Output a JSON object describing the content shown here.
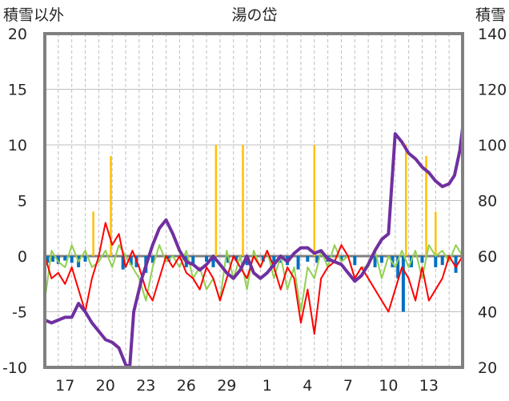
{
  "chart_data": {
    "type": "line",
    "title": "湯の岱",
    "y_left_label": "積雪以外",
    "y_right_label": "積雪",
    "y_left_range": [
      -10,
      20
    ],
    "y_right_range": [
      20,
      140
    ],
    "y_left_ticks": [
      "20",
      "15",
      "10",
      "5",
      "0",
      "-5",
      "-10"
    ],
    "y_right_ticks": [
      "140",
      "120",
      "100",
      "80",
      "60",
      "40",
      "20"
    ],
    "x_range_days": [
      0,
      31
    ],
    "x_ticks": [
      {
        "day": 1.5,
        "label": "17"
      },
      {
        "day": 4.5,
        "label": "20"
      },
      {
        "day": 7.5,
        "label": "23"
      },
      {
        "day": 10.5,
        "label": "26"
      },
      {
        "day": 13.5,
        "label": "29"
      },
      {
        "day": 16.5,
        "label": "1"
      },
      {
        "day": 19.5,
        "label": "4"
      },
      {
        "day": 22.5,
        "label": "7"
      },
      {
        "day": 25.5,
        "label": "10"
      },
      {
        "day": 28.5,
        "label": "13"
      }
    ],
    "grid": "horizontal solid at each left tick, vertical dashed at each day",
    "colors": {
      "snow_depth": "#7030a0",
      "temp_max": "#ff0000",
      "temp_min": "#92d050",
      "precip": "#ffc000",
      "negative_bars": "#0070c0",
      "frame": "#808080",
      "grid": "#bfbfbf",
      "zero_line": "#808080"
    },
    "series": [
      {
        "key": "snow_depth",
        "axis": "right",
        "points": [
          [
            0,
            37
          ],
          [
            0.5,
            36
          ],
          [
            1,
            37
          ],
          [
            1.5,
            38
          ],
          [
            2,
            38
          ],
          [
            2.5,
            43
          ],
          [
            3,
            40
          ],
          [
            3.5,
            36
          ],
          [
            4,
            33
          ],
          [
            4.5,
            30
          ],
          [
            5,
            29
          ],
          [
            5.5,
            27
          ],
          [
            6,
            21
          ],
          [
            6.3,
            20
          ],
          [
            6.6,
            40
          ],
          [
            7.2,
            52
          ],
          [
            8,
            64
          ],
          [
            8.5,
            70
          ],
          [
            9,
            73
          ],
          [
            9.5,
            68
          ],
          [
            10,
            62
          ],
          [
            10.5,
            58
          ],
          [
            11,
            57
          ],
          [
            11.5,
            55
          ],
          [
            12,
            57
          ],
          [
            12.5,
            60
          ],
          [
            13,
            57
          ],
          [
            13.5,
            54
          ],
          [
            14,
            52
          ],
          [
            14.5,
            55
          ],
          [
            15,
            60
          ],
          [
            15.5,
            54
          ],
          [
            16,
            52
          ],
          [
            16.5,
            54
          ],
          [
            17,
            57
          ],
          [
            17.5,
            60
          ],
          [
            18,
            58
          ],
          [
            18.5,
            61
          ],
          [
            19,
            63
          ],
          [
            19.5,
            63
          ],
          [
            20,
            61
          ],
          [
            20.5,
            62
          ],
          [
            21,
            59
          ],
          [
            21.5,
            58
          ],
          [
            22,
            57
          ],
          [
            22.5,
            54
          ],
          [
            23,
            51
          ],
          [
            23.5,
            53
          ],
          [
            24,
            57
          ],
          [
            24.5,
            62
          ],
          [
            25,
            66
          ],
          [
            25.5,
            68
          ],
          [
            26,
            104
          ],
          [
            26.5,
            101
          ],
          [
            27,
            97
          ],
          [
            27.5,
            95
          ],
          [
            28,
            92
          ],
          [
            28.5,
            90
          ],
          [
            29,
            87
          ],
          [
            29.5,
            85
          ],
          [
            30,
            86
          ],
          [
            30.4,
            89
          ],
          [
            30.8,
            98
          ],
          [
            31,
            106
          ]
        ]
      },
      {
        "key": "temp_max",
        "axis": "left",
        "points": [
          [
            0,
            0
          ],
          [
            0.5,
            -2
          ],
          [
            1,
            -1.5
          ],
          [
            1.5,
            -2.5
          ],
          [
            2,
            -1
          ],
          [
            2.5,
            -3
          ],
          [
            3,
            -5
          ],
          [
            3.5,
            -2
          ],
          [
            4,
            0
          ],
          [
            4.5,
            3
          ],
          [
            5,
            1
          ],
          [
            5.5,
            2
          ],
          [
            6,
            -1
          ],
          [
            6.5,
            0.5
          ],
          [
            7,
            -1
          ],
          [
            7.5,
            -3
          ],
          [
            8,
            -4
          ],
          [
            8.5,
            -2
          ],
          [
            9,
            0
          ],
          [
            9.5,
            -1
          ],
          [
            10,
            0
          ],
          [
            10.5,
            -1.5
          ],
          [
            11,
            -2
          ],
          [
            11.5,
            -3
          ],
          [
            12,
            -1
          ],
          [
            12.5,
            -2
          ],
          [
            13,
            -4
          ],
          [
            13.5,
            -2
          ],
          [
            14,
            0
          ],
          [
            14.5,
            -1
          ],
          [
            15,
            -2
          ],
          [
            15.5,
            0
          ],
          [
            16,
            -1
          ],
          [
            16.5,
            0.5
          ],
          [
            17,
            -1
          ],
          [
            17.5,
            -3
          ],
          [
            18,
            -1
          ],
          [
            18.5,
            -2
          ],
          [
            19,
            -6
          ],
          [
            19.5,
            -3
          ],
          [
            20,
            -7
          ],
          [
            20.5,
            -2
          ],
          [
            21,
            -1
          ],
          [
            21.5,
            -0.5
          ],
          [
            22,
            1
          ],
          [
            22.5,
            0
          ],
          [
            23,
            -2
          ],
          [
            23.5,
            -1
          ],
          [
            24,
            -2
          ],
          [
            24.5,
            -3
          ],
          [
            25,
            -4
          ],
          [
            25.5,
            -5
          ],
          [
            26,
            -3
          ],
          [
            26.5,
            -1
          ],
          [
            27,
            -2
          ],
          [
            27.5,
            -4
          ],
          [
            28,
            -1
          ],
          [
            28.5,
            -4
          ],
          [
            29,
            -3
          ],
          [
            29.5,
            -2
          ],
          [
            30,
            0
          ],
          [
            30.5,
            -1
          ],
          [
            31,
            0
          ]
        ]
      },
      {
        "key": "temp_min",
        "axis": "left",
        "points": [
          [
            0,
            -4
          ],
          [
            0.5,
            0.5
          ],
          [
            1,
            -0.5
          ],
          [
            1.5,
            -1
          ],
          [
            2,
            1
          ],
          [
            2.5,
            -0.5
          ],
          [
            3,
            0.5
          ],
          [
            3.5,
            -1
          ],
          [
            4,
            -0.5
          ],
          [
            4.5,
            0.5
          ],
          [
            5,
            -1
          ],
          [
            5.5,
            1
          ],
          [
            6,
            0
          ],
          [
            6.5,
            -1
          ],
          [
            7,
            -2
          ],
          [
            7.5,
            -4
          ],
          [
            8,
            -1
          ],
          [
            8.5,
            1
          ],
          [
            9,
            -0.5
          ],
          [
            9.5,
            0
          ],
          [
            10,
            -1
          ],
          [
            10.5,
            0.5
          ],
          [
            11,
            -2
          ],
          [
            11.5,
            -1
          ],
          [
            12,
            -3
          ],
          [
            12.5,
            -2
          ],
          [
            13,
            -4
          ],
          [
            13.5,
            0.5
          ],
          [
            14,
            -2
          ],
          [
            14.5,
            0
          ],
          [
            15,
            -3
          ],
          [
            15.5,
            0.5
          ],
          [
            16,
            -1
          ],
          [
            16.5,
            0.5
          ],
          [
            17,
            -2
          ],
          [
            17.5,
            0
          ],
          [
            18,
            -3
          ],
          [
            18.5,
            -1
          ],
          [
            19,
            -5
          ],
          [
            19.5,
            -1
          ],
          [
            20,
            -2
          ],
          [
            20.5,
            0.5
          ],
          [
            21,
            -1
          ],
          [
            21.5,
            1
          ],
          [
            22,
            -0.5
          ],
          [
            22.5,
            0
          ],
          [
            23,
            -2
          ],
          [
            23.5,
            -1
          ],
          [
            24,
            -1
          ],
          [
            24.5,
            0.5
          ],
          [
            25,
            -2
          ],
          [
            25.5,
            0
          ],
          [
            26,
            -1
          ],
          [
            26.5,
            0.5
          ],
          [
            27,
            -1
          ],
          [
            27.5,
            0.5
          ],
          [
            28,
            -2
          ],
          [
            28.5,
            1
          ],
          [
            29,
            0
          ],
          [
            29.5,
            0.5
          ],
          [
            30,
            -0.5
          ],
          [
            30.5,
            1
          ],
          [
            31,
            0
          ]
        ]
      },
      {
        "key": "precip",
        "axis": "left",
        "kind": "spikes",
        "points": [
          [
            3.6,
            4
          ],
          [
            4.9,
            9
          ],
          [
            12.7,
            10
          ],
          [
            14.7,
            10
          ],
          [
            20,
            10
          ],
          [
            26.8,
            10
          ],
          [
            28.3,
            9
          ],
          [
            29,
            4
          ]
        ]
      },
      {
        "key": "negative_bars",
        "axis": "left",
        "kind": "bars",
        "points": [
          [
            0.2,
            -0.6
          ],
          [
            0.6,
            -0.5
          ],
          [
            1.0,
            -0.7
          ],
          [
            1.5,
            -0.4
          ],
          [
            2.0,
            -0.6
          ],
          [
            2.5,
            -1.0
          ],
          [
            3.0,
            -0.5
          ],
          [
            5.8,
            -1.2
          ],
          [
            6.4,
            -0.8
          ],
          [
            6.8,
            -1.0
          ],
          [
            7.5,
            -1.5
          ],
          [
            8.0,
            -0.6
          ],
          [
            9.2,
            -0.5
          ],
          [
            10.5,
            -1.0
          ],
          [
            11.0,
            -0.7
          ],
          [
            12.0,
            -0.5
          ],
          [
            12.5,
            -1.0
          ],
          [
            13.6,
            -0.6
          ],
          [
            14.2,
            -0.4
          ],
          [
            15.0,
            -0.8
          ],
          [
            16.2,
            -0.5
          ],
          [
            17.0,
            -1.0
          ],
          [
            17.5,
            -0.6
          ],
          [
            18.0,
            -0.8
          ],
          [
            18.8,
            -1.2
          ],
          [
            19.5,
            -0.5
          ],
          [
            20.2,
            -0.6
          ],
          [
            21.0,
            -0.5
          ],
          [
            22.0,
            -0.4
          ],
          [
            23.0,
            -0.8
          ],
          [
            24.5,
            -1.0
          ],
          [
            25.0,
            -0.6
          ],
          [
            25.8,
            -1.0
          ],
          [
            26.2,
            -2.0
          ],
          [
            26.6,
            -5.0
          ],
          [
            27.2,
            -1.0
          ],
          [
            28.0,
            -0.6
          ],
          [
            29.0,
            -1.0
          ],
          [
            29.5,
            -0.8
          ],
          [
            30.5,
            -1.5
          ],
          [
            31.0,
            -0.6
          ]
        ]
      }
    ]
  }
}
